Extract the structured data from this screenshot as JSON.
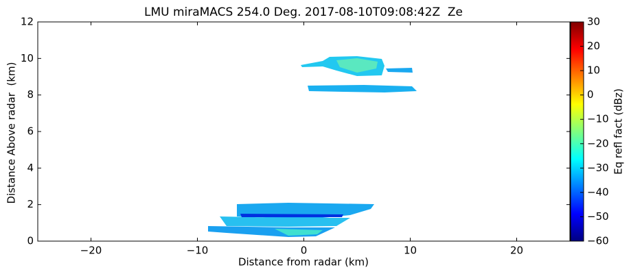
{
  "chart_data": {
    "type": "heatmap",
    "title": "LMU miraMACS 254.0 Deg. 2017-08-10T09:08:42Z  Ze",
    "x_label": "Distance from radar (km)",
    "y_label": "Distance Above radar  (km)",
    "xlim": [
      -25,
      25
    ],
    "xticks": [
      {
        "value": -20,
        "label": "−20"
      },
      {
        "value": -10,
        "label": "−10"
      },
      0,
      10,
      20
    ],
    "ylim": [
      0,
      12
    ],
    "yticks": [
      0,
      2,
      4,
      6,
      8,
      10,
      12
    ],
    "colorbar": {
      "label": "Eq refl fact (dBz)",
      "lim": [
        -60,
        30
      ],
      "colormap": "jet",
      "ticks": [
        {
          "value": -60,
          "label": "−60"
        },
        {
          "value": -50,
          "label": "−50"
        },
        {
          "value": -40,
          "label": "−40"
        },
        {
          "value": -30,
          "label": "−30"
        },
        {
          "value": -20,
          "label": "−20"
        },
        {
          "value": -10,
          "label": "−10"
        },
        0,
        10,
        20,
        30
      ]
    }
  }
}
